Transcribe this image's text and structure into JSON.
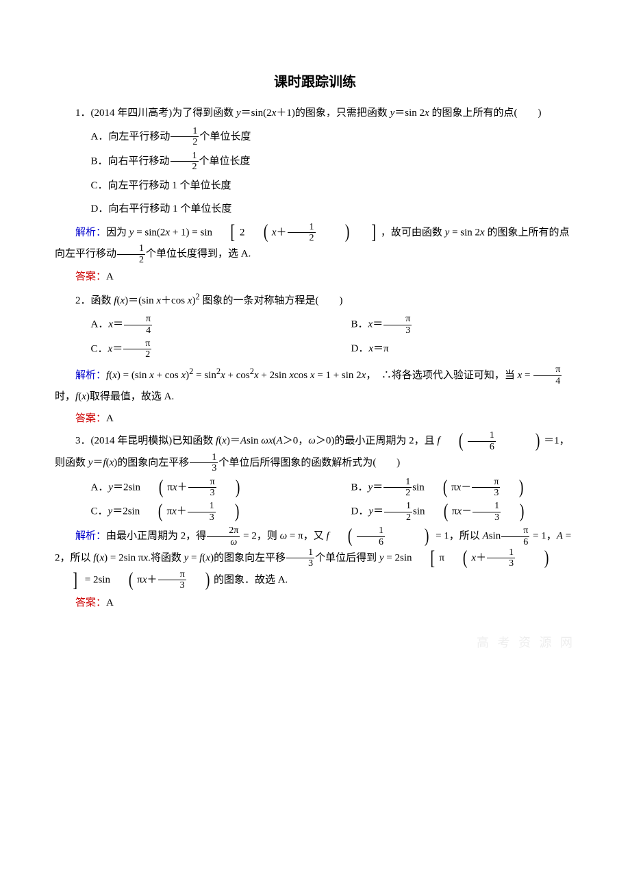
{
  "title": "课时跟踪训练",
  "q1": {
    "stem_a": "1．(2014 年四川高考)为了得到函数 ",
    "stem_b": "＝sin(2",
    "stem_c": "＋1)的图象，只需把函数 ",
    "stem_d": "＝sin 2",
    "stem_e": " 的图象上所有的点(　　)",
    "optA_a": "A．向左平行移动",
    "optA_b": "个单位长度",
    "optB_a": "B．向右平行移动",
    "optB_b": "个单位长度",
    "optC": "C．向左平行移动 1 个单位长度",
    "optD": "D．向右平行移动 1 个单位长度",
    "expl_label": "解析：",
    "expl_a": "因为 ",
    "expl_b": " = sin(2",
    "expl_c": " + 1) = sin",
    "expl_d": "，故可由函数 ",
    "expl_e": " = sin 2",
    "expl_f": " 的图象上所有的点向左平行移动",
    "expl_g": "个单位长度得到，选 A.",
    "ans_label": "答案：",
    "ans": "A"
  },
  "q2": {
    "stem_a": "2．函数 ",
    "stem_b": "＝(sin ",
    "stem_c": "＋cos ",
    "stem_d": " 图象的一条对称轴方程是(　　)",
    "optA": "A．",
    "optB": "B．",
    "optC": "C．",
    "optD_a": "D．",
    "optD_b": "＝π",
    "expl_label": "解析：",
    "expl_a": " = (sin ",
    "expl_b": " + cos ",
    "expl_c": " = sin",
    "expl_d": " + cos",
    "expl_e": " + 2sin ",
    "expl_f": "cos ",
    "expl_g": " = 1 + sin 2",
    "expl_h": "，　∴将各选项代入验证可知，当 ",
    "expl_i": "时，",
    "expl_j": "取得最值，故选 A.",
    "ans_label": "答案：",
    "ans": "A"
  },
  "q3": {
    "stem_a": "3．(2014 年昆明模拟)已知函数 ",
    "stem_b": "＝",
    "stem_c": "sin ",
    "stem_d": "＞0，",
    "stem_e": "＞0)的最小正周期为 2，且 ",
    "stem_f": "＝1，则函数 ",
    "stem_g": "＝",
    "stem_h": "的图象向左平移",
    "stem_i": "个单位后所得图象的函数解析式为(　　)",
    "optA_a": "A．",
    "optA_b": "＝2sin",
    "optB_a": "B．",
    "optB_b": "sin",
    "optC_a": "C．",
    "optC_b": "＝2sin",
    "optD_a": "D．",
    "optD_b": "sin",
    "expl_label": "解析：",
    "expl_a": "由最小正周期为 2，得",
    "expl_b": " = 2，则 ",
    "expl_c": " = π，又 ",
    "expl_d": " = 1，所以 ",
    "expl_e": "sin",
    "expl_f": " = 1，",
    "expl_g": " = 2，所以 ",
    "expl_h": " = 2sin π",
    "expl_i": ".将函数 ",
    "expl_j": " = ",
    "expl_k": "的图象向左平移",
    "expl_l": "个单位后得到 ",
    "expl_m": " = 2sin",
    "expl_n": " = 2sin",
    "expl_o": "的图象．故选 A.",
    "ans_label": "答案：",
    "ans": "A"
  },
  "watermark": "高 考 资 源 网"
}
